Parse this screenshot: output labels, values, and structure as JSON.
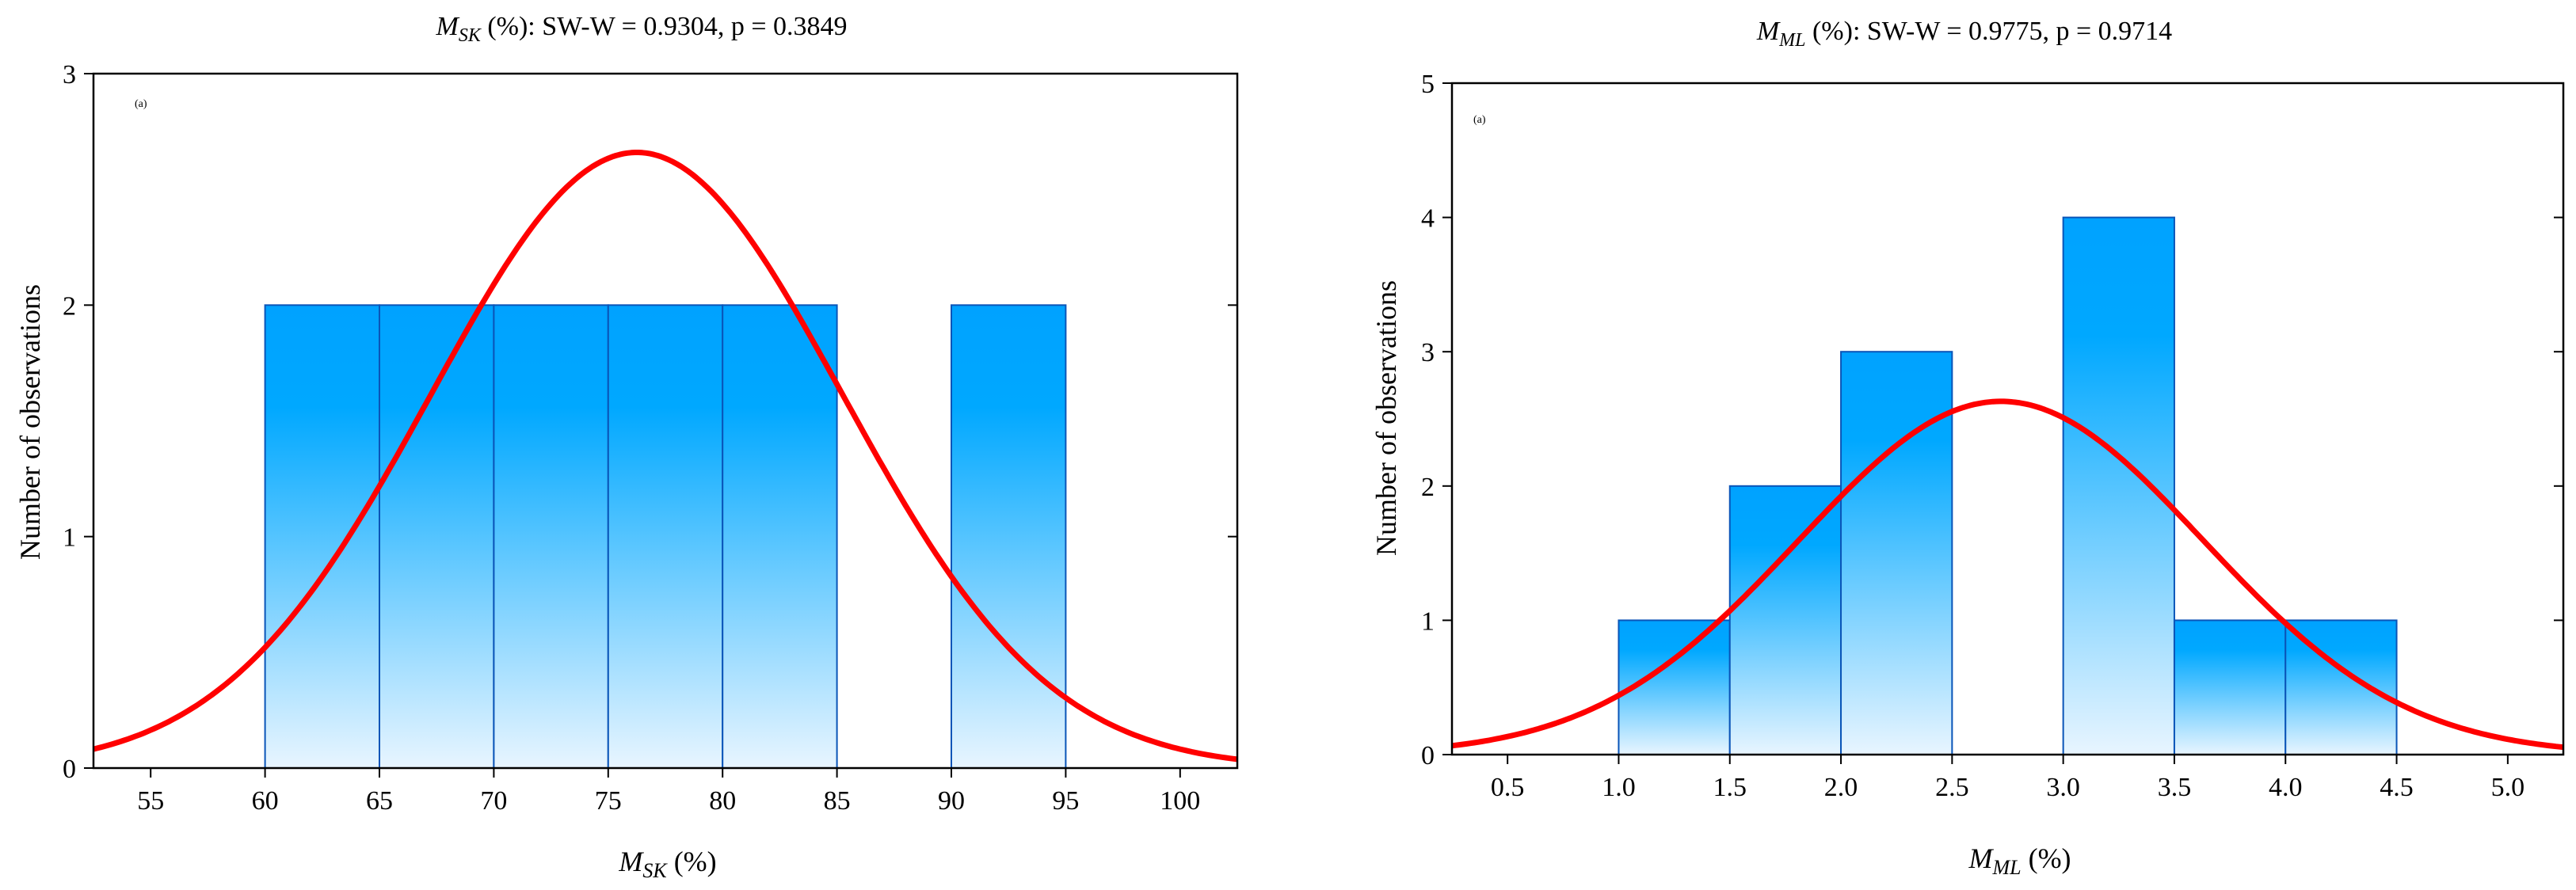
{
  "colors": {
    "bar_top": "#00a2ff",
    "bar_bottom": "#e8f5ff",
    "bar_edge": "#0a55b8",
    "curve": "#ff0000",
    "frame": "#000000"
  },
  "chart_data": [
    {
      "type": "bar",
      "subtype": "histogram-with-normal-fit",
      "title_var": "M",
      "title_sub": "SK",
      "title_rest": " (%):   SW-W = 0.9304, p = 0.3849",
      "panel_tag": "(a)",
      "xlabel_var": "M",
      "xlabel_sub": "SK",
      "xlabel_rest": " (%)",
      "ylabel": "Number of observations",
      "xlim": [
        52.5,
        102.5
      ],
      "ylim": [
        0,
        3
      ],
      "xticks": [
        55,
        60,
        65,
        70,
        75,
        80,
        85,
        90,
        95,
        100
      ],
      "yticks": [
        0,
        1,
        2,
        3
      ],
      "xtick_labels": [
        "55",
        "60",
        "65",
        "70",
        "75",
        "80",
        "85",
        "90",
        "95",
        "100"
      ],
      "ytick_labels": [
        "0",
        "1",
        "2",
        "3"
      ],
      "bins": [
        {
          "from": 60,
          "to": 65,
          "count": 2
        },
        {
          "from": 65,
          "to": 70,
          "count": 2
        },
        {
          "from": 70,
          "to": 75,
          "count": 2
        },
        {
          "from": 75,
          "to": 80,
          "count": 2
        },
        {
          "from": 80,
          "to": 85,
          "count": 2
        },
        {
          "from": 85,
          "to": 90,
          "count": 0
        },
        {
          "from": 90,
          "to": 95,
          "count": 2
        }
      ],
      "normal_fit": {
        "mean": 76.25,
        "sd": 9.0,
        "n": 12,
        "bin_width": 5
      }
    },
    {
      "type": "bar",
      "subtype": "histogram-with-normal-fit",
      "title_var": "M",
      "title_sub": "ML",
      "title_rest": " (%):    SW-W = 0.9775,  p = 0.9714",
      "panel_tag": "(a)",
      "xlabel_var": "M",
      "xlabel_sub": "ML",
      "xlabel_rest": " (%)",
      "ylabel": "Number of observations",
      "xlim": [
        0.25,
        5.25
      ],
      "ylim": [
        0,
        5
      ],
      "xticks": [
        0.5,
        1.0,
        1.5,
        2.0,
        2.5,
        3.0,
        3.5,
        4.0,
        4.5,
        5.0
      ],
      "yticks": [
        0,
        1,
        2,
        3,
        4,
        5
      ],
      "xtick_labels": [
        "0.5",
        "1.0",
        "1.5",
        "2.0",
        "2.5",
        "3.0",
        "3.5",
        "4.0",
        "4.5",
        "5.0"
      ],
      "ytick_labels": [
        "0",
        "1",
        "2",
        "3",
        "4",
        "5"
      ],
      "bins": [
        {
          "from": 1.0,
          "to": 1.5,
          "count": 1
        },
        {
          "from": 1.5,
          "to": 2.0,
          "count": 2
        },
        {
          "from": 2.0,
          "to": 2.5,
          "count": 3
        },
        {
          "from": 2.5,
          "to": 3.0,
          "count": 0
        },
        {
          "from": 3.0,
          "to": 3.5,
          "count": 4
        },
        {
          "from": 3.5,
          "to": 4.0,
          "count": 1
        },
        {
          "from": 4.0,
          "to": 4.5,
          "count": 1
        }
      ],
      "normal_fit": {
        "mean": 2.72,
        "sd": 0.91,
        "n": 12,
        "bin_width": 0.5
      }
    }
  ]
}
